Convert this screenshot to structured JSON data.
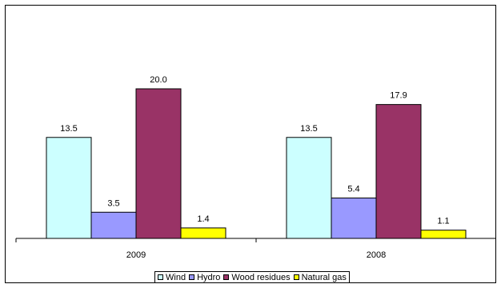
{
  "chart_data": {
    "type": "bar",
    "categories": [
      "2009",
      "2008"
    ],
    "series": [
      {
        "name": "Wind",
        "values": [
          13.5,
          13.5
        ],
        "color": "#CCFFFF"
      },
      {
        "name": "Hydro",
        "values": [
          3.5,
          5.4
        ],
        "color": "#9999FF"
      },
      {
        "name": "Wood residues",
        "values": [
          20.0,
          17.9
        ],
        "color": "#993366"
      },
      {
        "name": "Natural gas",
        "values": [
          1.4,
          1.1
        ],
        "color": "#FFFF00"
      }
    ],
    "title": "",
    "xlabel": "",
    "ylabel": "",
    "ylim": [
      0,
      20.7
    ],
    "grid": false,
    "legend_position": "bottom",
    "data_label_format": "one decimal"
  }
}
